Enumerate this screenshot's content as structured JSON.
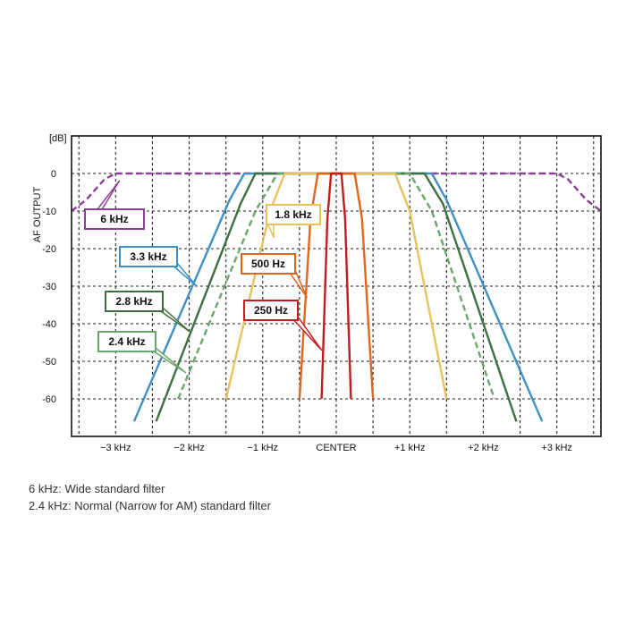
{
  "chart_data": {
    "type": "line",
    "ylabel": "AF OUTPUT",
    "yunit": "[dB]",
    "xlim": [
      -3.6,
      3.6
    ],
    "ylim": [
      -70,
      10
    ],
    "y_ticks": [
      0,
      -10,
      -20,
      -30,
      -40,
      -50,
      -60
    ],
    "y_tick_labels": [
      "0",
      "-10",
      "-20",
      "-30",
      "-40",
      "-50",
      "-60"
    ],
    "x_ticks": [
      -3,
      -2,
      -1,
      0,
      1,
      2,
      3
    ],
    "x_tick_labels": [
      "−3 kHz",
      "−2 kHz",
      "−1 kHz",
      "CENTER",
      "+1 kHz",
      "+2 kHz",
      "+3 kHz"
    ],
    "grid": true,
    "series": [
      {
        "name": "6 kHz",
        "color": "#8b3f98",
        "dashed": true,
        "x": [
          -3.6,
          -3.4,
          -3.15,
          -3.0,
          3.0,
          3.15,
          3.4,
          3.6
        ],
        "y": [
          -10,
          -7,
          -1.5,
          0,
          0,
          -1.5,
          -7,
          -10
        ]
      },
      {
        "name": "3.3 kHz",
        "color": "#3f8fc4",
        "dashed": false,
        "x": [
          -2.75,
          -1.45,
          -1.25,
          1.3,
          1.5,
          2.8
        ],
        "y": [
          -66,
          -7,
          0,
          0,
          -7,
          -66
        ]
      },
      {
        "name": "2.8 kHz",
        "color": "#3f6f3f",
        "dashed": false,
        "x": [
          -2.45,
          -1.3,
          -1.1,
          1.2,
          1.45,
          2.45
        ],
        "y": [
          -66,
          -8,
          0,
          0,
          -8,
          -66
        ]
      },
      {
        "name": "2.4 kHz",
        "color": "#6aa66a",
        "dashed": true,
        "x": [
          -2.15,
          -1.1,
          -0.8,
          1.0,
          1.3,
          2.15
        ],
        "y": [
          -60,
          -10,
          0,
          0,
          -10,
          -60
        ]
      },
      {
        "name": "1.8 kHz",
        "color": "#e8c15a",
        "dashed": false,
        "x": [
          -1.5,
          -0.9,
          -0.7,
          0.8,
          1.0,
          1.5
        ],
        "y": [
          -60,
          -10,
          0,
          0,
          -10,
          -60
        ]
      },
      {
        "name": "500 Hz",
        "color": "#e0651e",
        "dashed": false,
        "x": [
          -0.5,
          -0.35,
          -0.25,
          0.25,
          0.35,
          0.5
        ],
        "y": [
          -60,
          -12,
          0,
          0,
          -12,
          -60
        ]
      },
      {
        "name": "250 Hz",
        "color": "#c01e1e",
        "dashed": false,
        "x": [
          -0.2,
          -0.12,
          -0.07,
          0.07,
          0.12,
          0.2
        ],
        "y": [
          -60,
          -12,
          0,
          0,
          -12,
          -60
        ]
      }
    ],
    "annotations": [
      {
        "text": "6 kHz",
        "series": 0,
        "point": [
          -2.95,
          -2.0
        ]
      },
      {
        "text": "3.3 kHz",
        "series": 1,
        "point": [
          -1.9,
          -30
        ]
      },
      {
        "text": "2.8 kHz",
        "series": 2,
        "point": [
          -2.0,
          -42
        ]
      },
      {
        "text": "2.4 kHz",
        "series": 3,
        "point": [
          -2.05,
          -53
        ]
      },
      {
        "text": "1.8 kHz",
        "series": 4,
        "point": [
          -0.85,
          -17
        ]
      },
      {
        "text": "500 Hz",
        "series": 5,
        "point": [
          -0.4,
          -33
        ]
      },
      {
        "text": "250 Hz",
        "series": 6,
        "point": [
          -0.2,
          -47
        ]
      }
    ]
  },
  "captions": {
    "line1": "6 kHz: Wide standard filter",
    "line2": "2.4 kHz: Normal (Narrow for AM) standard filter"
  }
}
